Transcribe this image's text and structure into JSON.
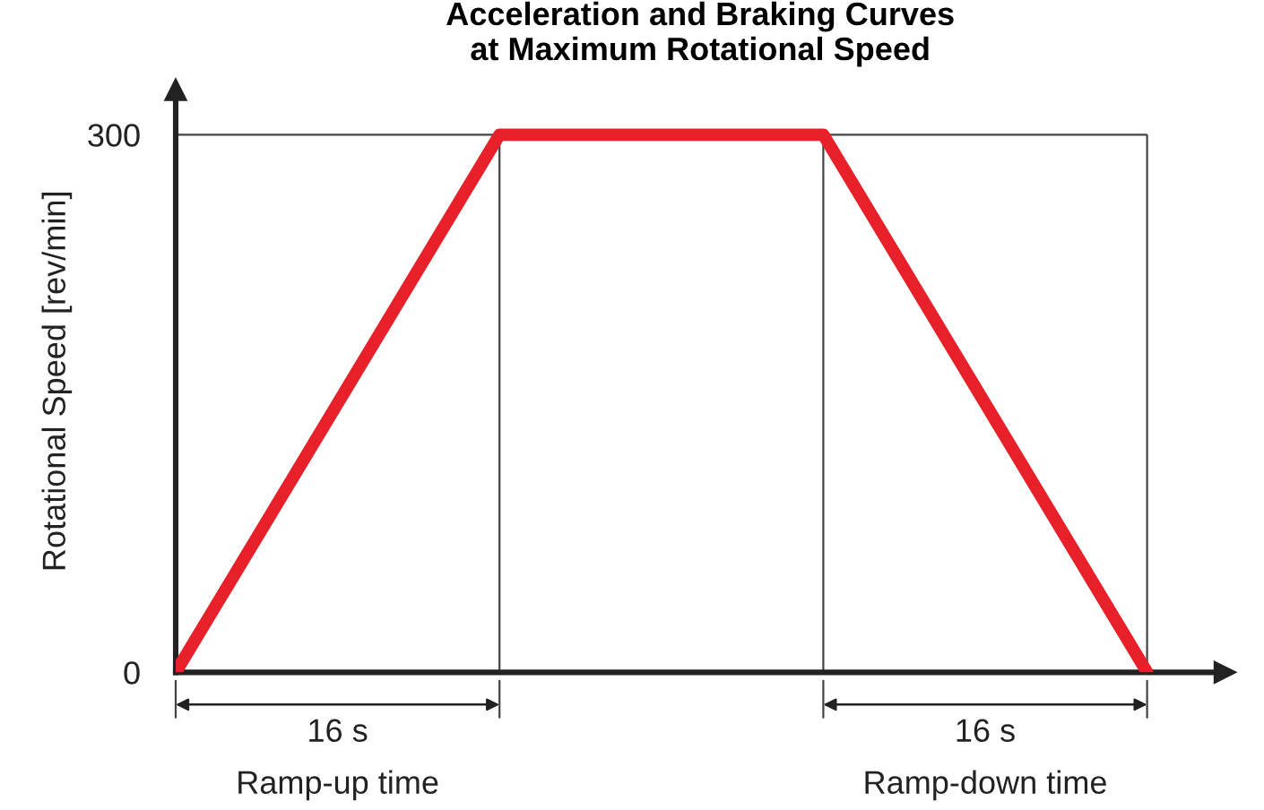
{
  "chart_data": {
    "type": "line",
    "title": "Acceleration and Braking Curves\nat Maximum Rotational Speed",
    "ylabel": "Rotational Speed [rev/min]",
    "categories": [
      null,
      null,
      null,
      null
    ],
    "series": [
      {
        "color": "#e8202a",
        "values": [
          0,
          300,
          300,
          0
        ]
      }
    ],
    "ylim": [
      0,
      325
    ],
    "yticks": [
      0,
      300
    ],
    "grid": true,
    "marker": "none",
    "line_style": "solid",
    "annotations": [
      "16 s",
      "16 s",
      "Ramp-up time",
      "Ramp-down time"
    ]
  }
}
